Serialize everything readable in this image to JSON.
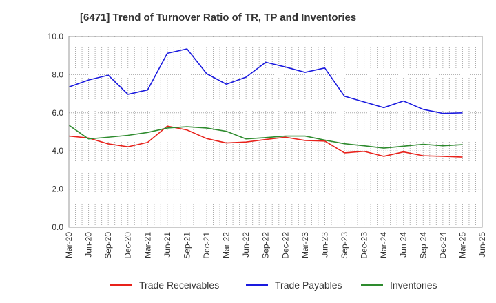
{
  "chart_data": {
    "type": "line",
    "title": "[6471]  Trend of Turnover Ratio of TR, TP and Inventories",
    "xlabel": "",
    "ylabel": "",
    "ylim": [
      0,
      10
    ],
    "yticks": [
      "0.0",
      "2.0",
      "4.0",
      "6.0",
      "8.0",
      "10.0"
    ],
    "grid": true,
    "legend_position": "bottom",
    "x": [
      "Mar-20",
      "Jun-20",
      "Sep-20",
      "Dec-20",
      "Mar-21",
      "Jun-21",
      "Sep-21",
      "Dec-21",
      "Mar-22",
      "Jun-22",
      "Sep-22",
      "Dec-22",
      "Mar-23",
      "Jun-23",
      "Sep-23",
      "Dec-23",
      "Mar-24",
      "Jun-24",
      "Sep-24",
      "Dec-24",
      "Mar-25",
      "Jun-25"
    ],
    "series": [
      {
        "name": "Trade Receivables",
        "color": "#e8221b",
        "values": [
          4.78,
          4.68,
          4.37,
          4.22,
          4.45,
          5.3,
          5.1,
          4.65,
          4.42,
          4.47,
          4.6,
          4.72,
          4.55,
          4.52,
          3.9,
          3.98,
          3.72,
          3.95,
          3.75,
          3.72,
          3.68,
          null
        ]
      },
      {
        "name": "Trade Payables",
        "color": "#1a1adf",
        "values": [
          7.35,
          7.72,
          7.97,
          6.97,
          7.2,
          9.12,
          9.35,
          8.05,
          7.5,
          7.87,
          8.65,
          8.4,
          8.12,
          8.35,
          6.87,
          6.57,
          6.27,
          6.62,
          6.18,
          5.97,
          6.0,
          null
        ]
      },
      {
        "name": "Inventories",
        "color": "#2e8b2e",
        "values": [
          5.35,
          4.63,
          4.72,
          4.82,
          4.97,
          5.2,
          5.27,
          5.2,
          5.03,
          4.63,
          4.7,
          4.78,
          4.78,
          4.57,
          4.38,
          4.27,
          4.15,
          4.25,
          4.35,
          4.27,
          4.33,
          null
        ]
      }
    ]
  }
}
